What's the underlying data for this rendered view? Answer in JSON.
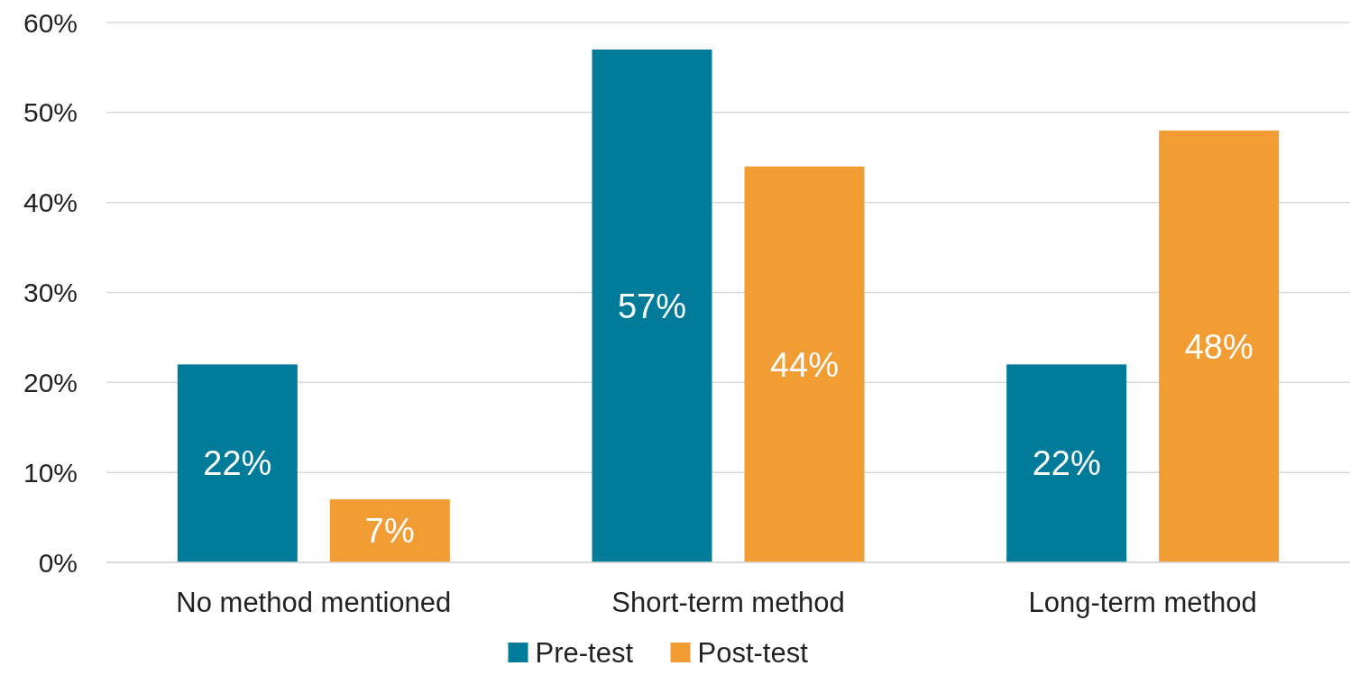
{
  "chart_data": {
    "type": "bar",
    "categories": [
      "No method mentioned",
      "Short-term method",
      "Long-term method"
    ],
    "series": [
      {
        "name": "Pre-test",
        "color": "#007b9a",
        "values": [
          22,
          57,
          22
        ],
        "value_labels": [
          "22%",
          "57%",
          "22%"
        ]
      },
      {
        "name": "Post-test",
        "color": "#f29c34",
        "values": [
          7,
          44,
          48
        ],
        "value_labels": [
          "7%",
          "44%",
          "48%"
        ]
      }
    ],
    "ylim": [
      0,
      60
    ],
    "yticks": [
      {
        "value": 0,
        "label": "0%"
      },
      {
        "value": 10,
        "label": "10%"
      },
      {
        "value": 20,
        "label": "20%"
      },
      {
        "value": 30,
        "label": "30%"
      },
      {
        "value": 40,
        "label": "40%"
      },
      {
        "value": 50,
        "label": "50%"
      },
      {
        "value": 60,
        "label": "60%"
      }
    ],
    "grid": "y",
    "legend": "bottom"
  }
}
